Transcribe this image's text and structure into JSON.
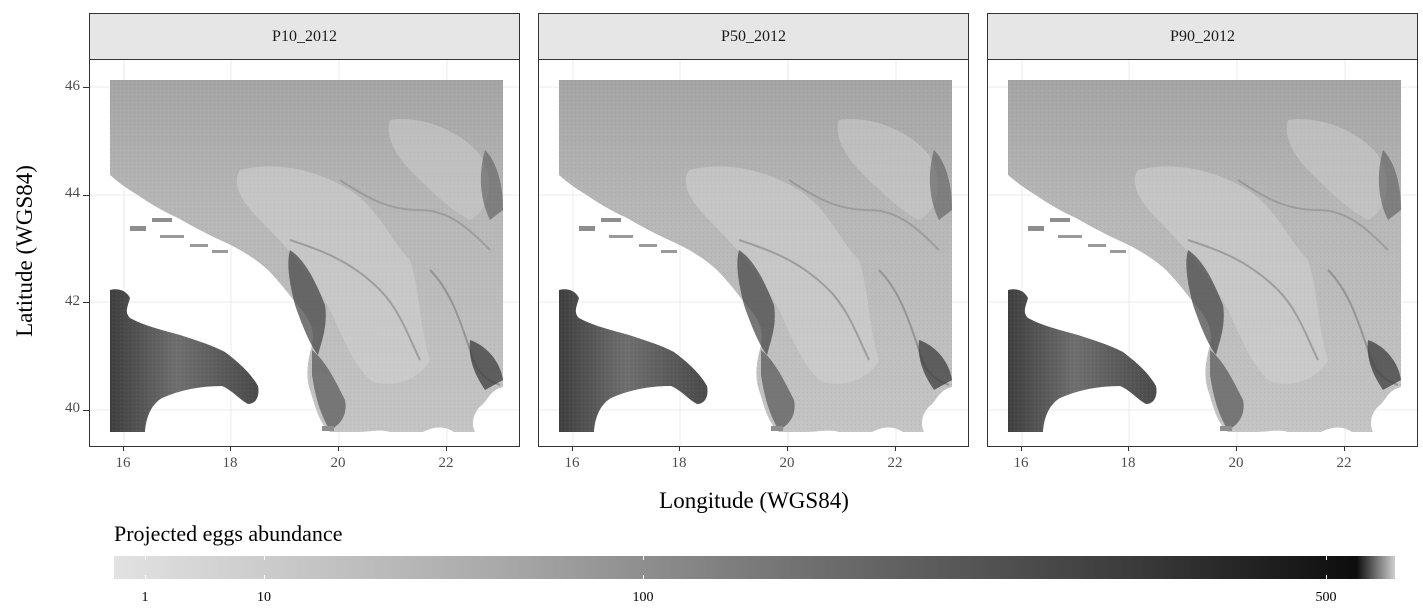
{
  "figure": {
    "x_axis_title": "Longitude (WGS84)",
    "y_axis_title": "Latitude (WGS84)",
    "x_ticks": [
      "16",
      "18",
      "20",
      "22"
    ],
    "y_ticks": [
      "46",
      "44",
      "42",
      "40"
    ],
    "panels": [
      {
        "strip_label": "P10_2012"
      },
      {
        "strip_label": "P50_2012"
      },
      {
        "strip_label": "P90_2012"
      }
    ]
  },
  "legend": {
    "title": "Projected eggs abundance",
    "ticks": [
      "1",
      "10",
      "100",
      "500"
    ],
    "color_low": "#d9d9d9",
    "color_high": "#0d0d0d"
  },
  "colors": {
    "strip_fill": "#e6e6e6",
    "panel_border": "#333333",
    "land_gray": "#a8a8a8"
  }
}
